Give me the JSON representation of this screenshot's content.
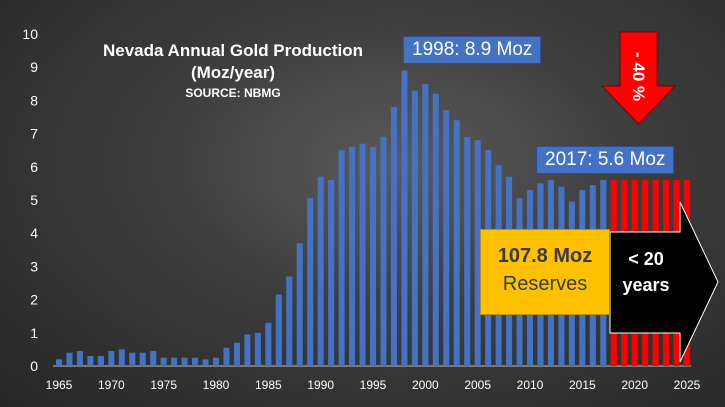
{
  "chart_data": {
    "type": "bar",
    "title": "Nevada Annual Gold Production",
    "subtitle": "(Moz/year)",
    "source": "SOURCE: NBMG",
    "ylim": [
      0,
      10
    ],
    "yticks": [
      "0",
      "1",
      "2",
      "3",
      "4",
      "5",
      "6",
      "7",
      "8",
      "9",
      "10"
    ],
    "xlim": [
      1965,
      2025
    ],
    "xticks": [
      "1965",
      "1970",
      "1975",
      "1980",
      "1985",
      "1990",
      "1995",
      "2000",
      "2005",
      "2010",
      "2015",
      "2020",
      "2025"
    ],
    "grid": false,
    "years": [
      1965,
      1966,
      1967,
      1968,
      1969,
      1970,
      1971,
      1972,
      1973,
      1974,
      1975,
      1976,
      1977,
      1978,
      1979,
      1980,
      1981,
      1982,
      1983,
      1984,
      1985,
      1986,
      1987,
      1988,
      1989,
      1990,
      1991,
      1992,
      1993,
      1994,
      1995,
      1996,
      1997,
      1998,
      1999,
      2000,
      2001,
      2002,
      2003,
      2004,
      2005,
      2006,
      2007,
      2008,
      2009,
      2010,
      2011,
      2012,
      2013,
      2014,
      2015,
      2016,
      2017
    ],
    "values": [
      0.2,
      0.4,
      0.45,
      0.3,
      0.3,
      0.45,
      0.5,
      0.4,
      0.4,
      0.45,
      0.25,
      0.25,
      0.25,
      0.25,
      0.2,
      0.25,
      0.55,
      0.7,
      0.95,
      1.0,
      1.3,
      2.15,
      2.7,
      3.7,
      5.05,
      5.7,
      5.6,
      6.5,
      6.6,
      6.7,
      6.6,
      6.9,
      7.8,
      8.9,
      8.3,
      8.5,
      8.2,
      7.7,
      7.4,
      6.9,
      6.8,
      6.5,
      6.05,
      5.7,
      5.05,
      5.3,
      5.5,
      5.6,
      5.4,
      4.95,
      5.3,
      5.45,
      5.6
    ],
    "projection": {
      "years": [
        2018,
        2019,
        2020,
        2021,
        2022,
        2023,
        2024,
        2025
      ],
      "value": 5.6,
      "color": "#ff0000"
    },
    "bar_color": "#4472c4",
    "annotations": {
      "peak": "1998: 8.9 Moz",
      "current": "2017: 5.6 Moz",
      "reserves_value": "107.8 Moz",
      "reserves_label": "Reserves",
      "years_left": "< 20 years",
      "decline": "- 40 %"
    }
  }
}
